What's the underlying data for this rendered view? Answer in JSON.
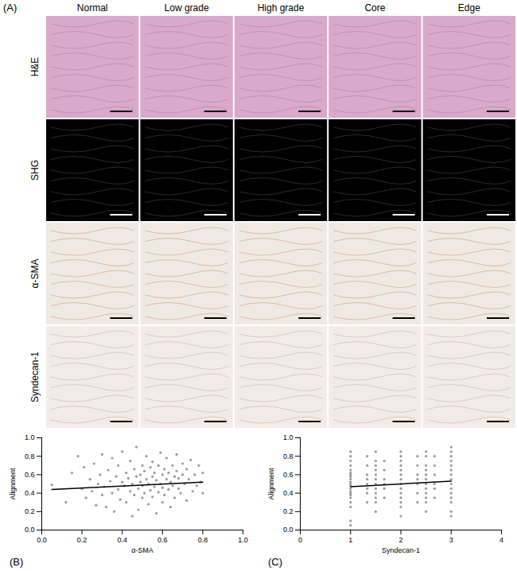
{
  "panel_a": {
    "label": "(A)",
    "columns": [
      "Normal",
      "Low grade",
      "High grade",
      "Core",
      "Edge"
    ],
    "rows": [
      "H&E",
      "SHG",
      "α-SMA",
      "Syndecan-1"
    ]
  },
  "chart_data": [
    {
      "type": "scatter",
      "panel_label": "(B)",
      "x_label": "α-SMA",
      "y_label": "Alignment",
      "color": "#999999",
      "x": [
        0.05,
        0.12,
        0.15,
        0.18,
        0.2,
        0.21,
        0.22,
        0.24,
        0.25,
        0.26,
        0.27,
        0.28,
        0.29,
        0.3,
        0.3,
        0.31,
        0.32,
        0.33,
        0.34,
        0.35,
        0.35,
        0.36,
        0.37,
        0.38,
        0.38,
        0.39,
        0.4,
        0.4,
        0.41,
        0.42,
        0.42,
        0.43,
        0.44,
        0.44,
        0.45,
        0.45,
        0.46,
        0.46,
        0.47,
        0.47,
        0.48,
        0.48,
        0.49,
        0.49,
        0.5,
        0.5,
        0.5,
        0.51,
        0.51,
        0.52,
        0.52,
        0.53,
        0.53,
        0.54,
        0.54,
        0.55,
        0.55,
        0.55,
        0.56,
        0.56,
        0.57,
        0.57,
        0.58,
        0.58,
        0.59,
        0.59,
        0.6,
        0.6,
        0.6,
        0.61,
        0.61,
        0.62,
        0.62,
        0.63,
        0.63,
        0.64,
        0.64,
        0.65,
        0.65,
        0.66,
        0.66,
        0.67,
        0.67,
        0.68,
        0.68,
        0.69,
        0.7,
        0.7,
        0.71,
        0.72,
        0.72,
        0.73,
        0.74,
        0.75,
        0.76,
        0.77,
        0.78,
        0.79,
        0.8,
        0.8
      ],
      "y": [
        0.49,
        0.3,
        0.62,
        0.8,
        0.45,
        0.68,
        0.35,
        0.55,
        0.42,
        0.72,
        0.27,
        0.5,
        0.6,
        0.38,
        0.82,
        0.47,
        0.25,
        0.65,
        0.53,
        0.4,
        0.78,
        0.2,
        0.58,
        0.44,
        0.7,
        0.33,
        0.52,
        0.85,
        0.48,
        0.62,
        0.3,
        0.56,
        0.42,
        0.75,
        0.5,
        0.15,
        0.66,
        0.38,
        0.58,
        0.9,
        0.45,
        0.22,
        0.6,
        0.52,
        0.35,
        0.7,
        0.48,
        0.64,
        0.4,
        0.55,
        0.8,
        0.28,
        0.5,
        0.68,
        0.43,
        0.58,
        0.36,
        0.74,
        0.47,
        0.62,
        0.18,
        0.54,
        0.7,
        0.41,
        0.5,
        0.84,
        0.3,
        0.6,
        0.46,
        0.66,
        0.38,
        0.55,
        0.78,
        0.44,
        0.62,
        0.25,
        0.52,
        0.7,
        0.48,
        0.58,
        0.35,
        0.64,
        0.82,
        0.45,
        0.56,
        0.4,
        0.6,
        0.72,
        0.5,
        0.32,
        0.66,
        0.55,
        0.76,
        0.42,
        0.6,
        0.48,
        0.7,
        0.52,
        0.62,
        0.4
      ],
      "trend_line": {
        "x": [
          0.05,
          0.8
        ],
        "y": [
          0.44,
          0.52
        ],
        "color": "#000000"
      },
      "xlim": [
        0,
        1
      ],
      "ylim": [
        0,
        1
      ],
      "xticks": [
        {
          "value": 0,
          "label": "0.0"
        },
        {
          "value": 0.2,
          "label": "0.2"
        },
        {
          "value": 0.4,
          "label": "0.4"
        },
        {
          "value": 0.6,
          "label": "0.6"
        },
        {
          "value": 0.8,
          "label": "0.8"
        },
        {
          "value": 1,
          "label": "1.0"
        }
      ],
      "yticks": [
        {
          "value": 0,
          "label": "0.0"
        },
        {
          "value": 0.2,
          "label": "0.2"
        },
        {
          "value": 0.4,
          "label": "0.4"
        },
        {
          "value": 0.6,
          "label": "0.6"
        },
        {
          "value": 0.8,
          "label": "0.8"
        },
        {
          "value": 1,
          "label": "1.0"
        }
      ]
    },
    {
      "type": "scatter",
      "panel_label": "(C)",
      "x_label": "Syndecan-1",
      "y_label": "Alignment",
      "color": "#999999",
      "x": [
        1,
        1,
        1,
        1,
        1,
        1,
        1,
        1,
        1,
        1,
        1,
        1,
        1,
        1,
        1,
        1,
        1,
        1,
        1,
        1,
        1,
        1.33,
        1.33,
        1.33,
        1.33,
        1.33,
        1.33,
        1.33,
        1.33,
        1.5,
        1.5,
        1.5,
        1.5,
        1.5,
        1.5,
        1.5,
        1.5,
        1.5,
        1.5,
        1.5,
        1.5,
        1.67,
        1.67,
        1.67,
        1.67,
        1.67,
        1.67,
        2,
        2,
        2,
        2,
        2,
        2,
        2,
        2,
        2,
        2,
        2,
        2,
        2,
        2,
        2.33,
        2.33,
        2.33,
        2.33,
        2.33,
        2.33,
        2.33,
        2.5,
        2.5,
        2.5,
        2.5,
        2.5,
        2.5,
        2.5,
        2.5,
        2.5,
        2.5,
        2.5,
        2.5,
        2.67,
        2.67,
        2.67,
        2.67,
        2.67,
        2.67,
        3,
        3,
        3,
        3,
        3,
        3,
        3,
        3,
        3,
        3,
        3,
        3,
        3,
        3,
        3
      ],
      "y": [
        0.05,
        0.1,
        0.25,
        0.3,
        0.35,
        0.38,
        0.4,
        0.42,
        0.45,
        0.48,
        0.5,
        0.52,
        0.55,
        0.58,
        0.6,
        0.62,
        0.65,
        0.7,
        0.75,
        0.8,
        0.85,
        0.3,
        0.4,
        0.45,
        0.5,
        0.55,
        0.6,
        0.7,
        0.8,
        0.2,
        0.3,
        0.35,
        0.4,
        0.45,
        0.5,
        0.55,
        0.6,
        0.65,
        0.7,
        0.75,
        0.85,
        0.35,
        0.45,
        0.5,
        0.55,
        0.65,
        0.75,
        0.15,
        0.25,
        0.3,
        0.35,
        0.4,
        0.45,
        0.5,
        0.55,
        0.6,
        0.65,
        0.7,
        0.75,
        0.8,
        0.85,
        0.3,
        0.4,
        0.5,
        0.55,
        0.6,
        0.7,
        0.8,
        0.2,
        0.3,
        0.35,
        0.4,
        0.45,
        0.5,
        0.55,
        0.6,
        0.65,
        0.7,
        0.8,
        0.85,
        0.35,
        0.45,
        0.5,
        0.6,
        0.7,
        0.8,
        0.15,
        0.2,
        0.3,
        0.35,
        0.4,
        0.45,
        0.5,
        0.55,
        0.6,
        0.65,
        0.7,
        0.75,
        0.8,
        0.85,
        0.9
      ],
      "trend_line": {
        "x": [
          1,
          3
        ],
        "y": [
          0.47,
          0.53
        ],
        "color": "#000000"
      },
      "xlim": [
        0,
        4
      ],
      "ylim": [
        0,
        1
      ],
      "xticks": [
        0,
        1,
        2,
        3,
        4
      ],
      "yticks": [
        {
          "value": 0,
          "label": "0.0"
        },
        {
          "value": 0.2,
          "label": "0.2"
        },
        {
          "value": 0.4,
          "label": "0.4"
        },
        {
          "value": 0.6,
          "label": "0.6"
        },
        {
          "value": 0.8,
          "label": "0.8"
        },
        {
          "value": 1,
          "label": "1.0"
        }
      ]
    }
  ]
}
